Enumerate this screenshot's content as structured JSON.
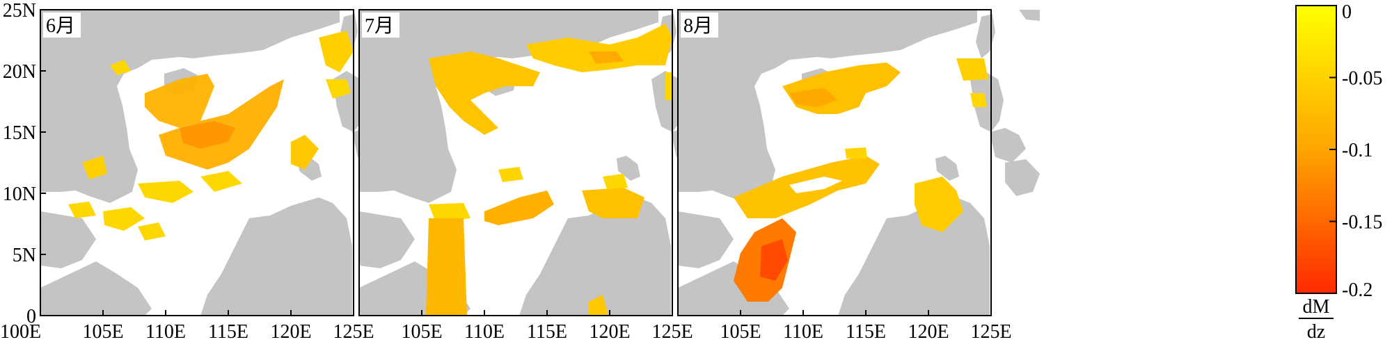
{
  "colors": {
    "land": "#c4c4c4",
    "sea": "#ffffff",
    "scale_low": "#ffff00",
    "scale_mid": "#ffa500",
    "scale_high": "#ff2a00",
    "border": "#000000"
  },
  "panels": [
    {
      "label": "6月"
    },
    {
      "label": "7月"
    },
    {
      "label": "8月"
    }
  ],
  "y_ticks": [
    "25N",
    "20N",
    "15N",
    "10N",
    "5N",
    "0"
  ],
  "x_ticks": [
    "100E",
    "105E",
    "110E",
    "115E",
    "120E",
    "125E"
  ],
  "colorbar": {
    "ticks": [
      "0",
      "-0.05",
      "-0.1",
      "-0.15",
      "-0.2"
    ],
    "unit_top": "dM",
    "unit_bottom": "dz"
  }
}
